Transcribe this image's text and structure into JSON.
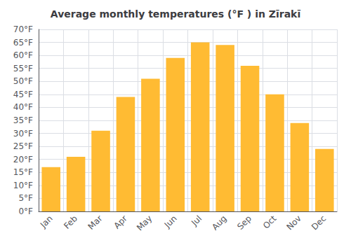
{
  "chart_data": {
    "type": "bar",
    "title": "Average monthly temperatures (°F ) in Zīrakī",
    "categories": [
      "Jan",
      "Feb",
      "Mar",
      "Apr",
      "May",
      "Jun",
      "Jul",
      "Aug",
      "Sep",
      "Oct",
      "Nov",
      "Dec"
    ],
    "values": [
      17,
      21,
      31,
      44,
      51,
      59,
      65,
      64,
      56,
      45,
      34,
      24
    ],
    "color": "#FFBB33",
    "ylim": [
      0,
      70
    ],
    "yticks": [
      {
        "value": 0,
        "label": "0°F"
      },
      {
        "value": 5,
        "label": "5°F"
      },
      {
        "value": 10,
        "label": "10°F"
      },
      {
        "value": 15,
        "label": "15°F"
      },
      {
        "value": 20,
        "label": "20°F"
      },
      {
        "value": 25,
        "label": "25°F"
      },
      {
        "value": 30,
        "label": "30°F"
      },
      {
        "value": 35,
        "label": "35°F"
      },
      {
        "value": 40,
        "label": "40°F"
      },
      {
        "value": 45,
        "label": "45°F"
      },
      {
        "value": 50,
        "label": "50°F"
      },
      {
        "value": 55,
        "label": "55°F"
      },
      {
        "value": 60,
        "label": "60°F"
      },
      {
        "value": 65,
        "label": "65°F"
      },
      {
        "value": 70,
        "label": "70°F"
      }
    ],
    "grid": true
  }
}
